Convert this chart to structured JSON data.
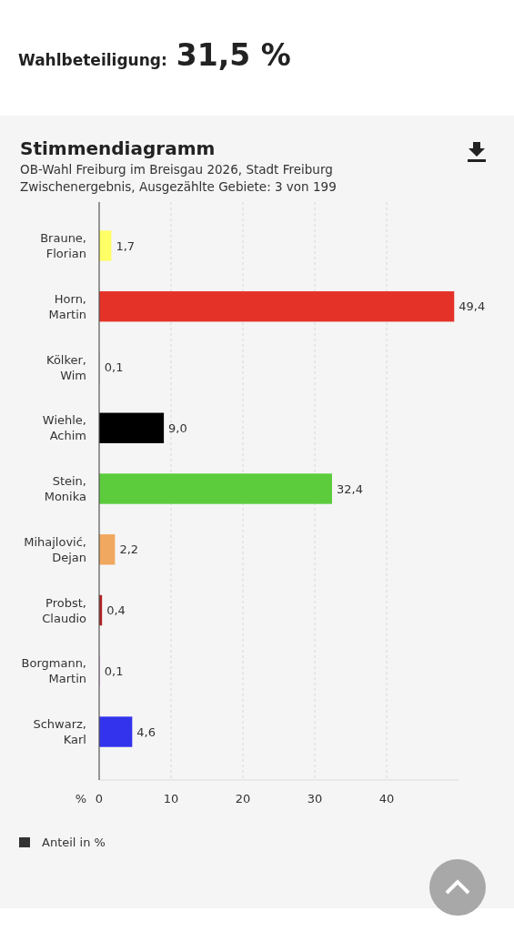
{
  "chart_data": {
    "type": "bar",
    "orientation": "horizontal",
    "title": "Stimmendiagramm",
    "subtitle": "OB-Wahl Freiburg im Breisgau 2026, Stadt Freiburg\nZwischenergebnis, Ausgezählte Gebiete: 3 von 199",
    "annotations": [
      "Wahlbeteiligung: 31,5 %"
    ],
    "xlabel": "%",
    "categories": [
      "Braune, Florian",
      "Horn, Martin",
      "Kölker, Wim",
      "Wiehle, Achim",
      "Stein, Monika",
      "Mihajlović, Dejan",
      "Probst, Claudio",
      "Borgmann, Martin",
      "Schwarz, Karl"
    ],
    "series": [
      {
        "name": "Anteil in %",
        "color": "#333333",
        "colors": [
          "#ffff66",
          "#e53228",
          "#d9d9d9",
          "#000000",
          "#5ccc3c",
          "#f0a860",
          "#b22222",
          "#f0b0f0",
          "#3333ee"
        ],
        "values": [
          1.7,
          49.4,
          0.1,
          9.0,
          32.4,
          2.2,
          0.4,
          0.1,
          4.6
        ],
        "value_labels": [
          "1,7",
          "49,4",
          "0,1",
          "9,0",
          "32,4",
          "2,2",
          "0,4",
          "0,1",
          "4,6"
        ]
      }
    ],
    "xlim": [
      0,
      50
    ],
    "xticks": [
      0,
      10,
      20,
      30,
      40
    ],
    "grid": "x",
    "legend": "bottom left"
  }
}
